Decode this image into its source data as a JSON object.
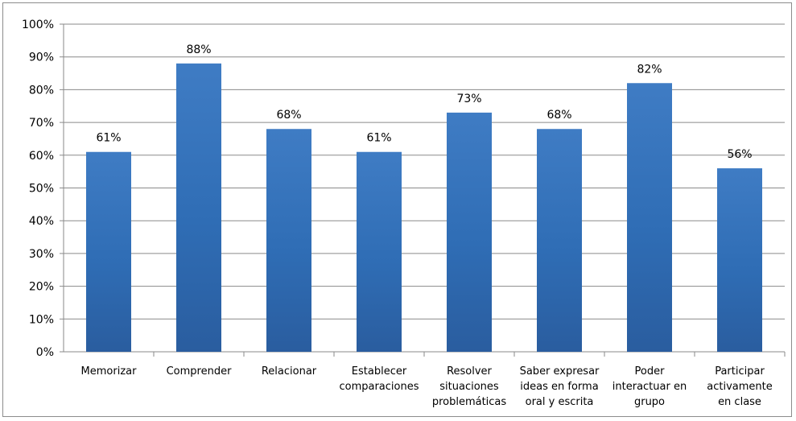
{
  "chart_data": {
    "type": "bar",
    "title": "",
    "xlabel": "",
    "ylabel": "",
    "ylim": [
      0,
      100
    ],
    "y_unit": "%",
    "y_ticks": [
      "0%",
      "10%",
      "20%",
      "30%",
      "40%",
      "50%",
      "60%",
      "70%",
      "80%",
      "90%",
      "100%"
    ],
    "grid": "horizontal",
    "legend": "none",
    "bar_color": "#3a73b8",
    "categories": [
      [
        "Memorizar"
      ],
      [
        "Comprender"
      ],
      [
        "Relacionar"
      ],
      [
        "Establecer",
        "comparaciones"
      ],
      [
        "Resolver",
        "situaciones",
        "problemáticas"
      ],
      [
        "Saber expresar",
        "ideas en forma",
        "oral y escrita"
      ],
      [
        "Poder",
        "interactuar en",
        "grupo"
      ],
      [
        "Participar",
        "activamente",
        "en clase"
      ]
    ],
    "values": [
      61,
      88,
      68,
      61,
      73,
      68,
      82,
      56
    ],
    "data_labels": [
      "61%",
      "88%",
      "68%",
      "61%",
      "73%",
      "68%",
      "82%",
      "56%"
    ]
  }
}
